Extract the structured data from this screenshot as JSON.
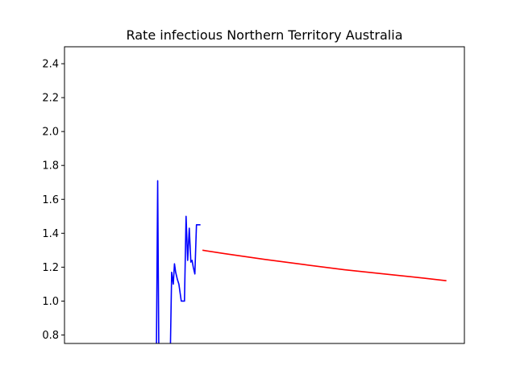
{
  "chart_data": {
    "type": "line",
    "title": "Rate infectious Northern Territory Australia",
    "xlabel": "",
    "ylabel": "",
    "xlim": [
      0,
      100
    ],
    "ylim": [
      0.75,
      2.5
    ],
    "yticks": [
      0.8,
      1.0,
      1.2,
      1.4,
      1.6,
      1.8,
      2.0,
      2.2,
      2.4
    ],
    "grid": false,
    "series": [
      {
        "color": "#0000ff",
        "x": [
          23.0,
          23.3,
          23.6,
          24.0,
          24.3,
          26.5,
          26.8,
          27.2,
          27.5,
          27.8,
          28.2,
          28.6,
          29.2,
          29.6,
          30.0,
          30.4,
          30.8,
          31.2,
          31.6,
          31.9,
          32.2,
          32.6,
          33.0,
          33.4,
          33.7,
          34.0
        ],
        "y": [
          0.75,
          1.71,
          0.65,
          0.65,
          0.65,
          0.75,
          1.17,
          1.1,
          1.22,
          1.17,
          1.13,
          1.1,
          1.0,
          1.0,
          1.0,
          1.5,
          1.24,
          1.43,
          1.23,
          1.24,
          1.2,
          1.16,
          1.45,
          1.45,
          1.45,
          1.45
        ]
      },
      {
        "color": "#ff0000",
        "x": [
          34.5,
          40,
          50,
          60,
          70,
          80,
          90,
          95.5
        ],
        "y": [
          1.3,
          1.28,
          1.246,
          1.215,
          1.185,
          1.16,
          1.135,
          1.12
        ]
      }
    ]
  }
}
